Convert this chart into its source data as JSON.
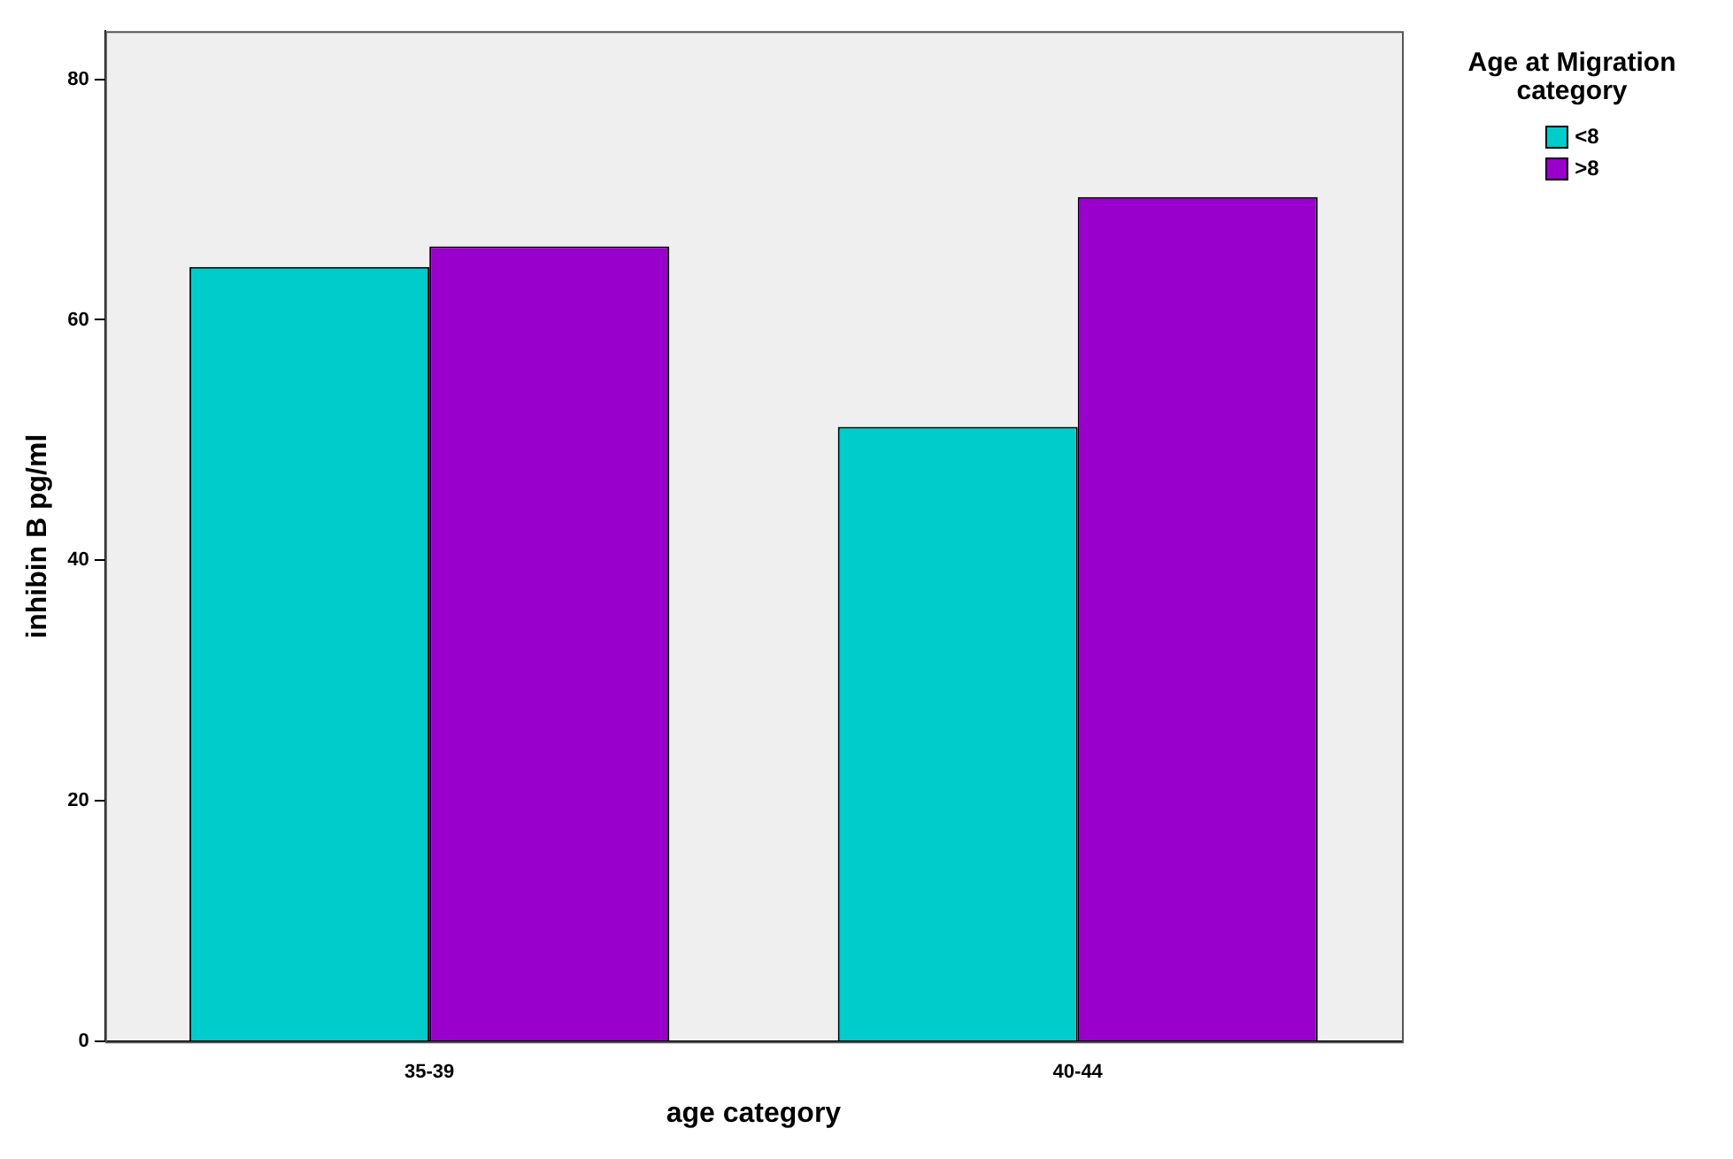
{
  "chart_data": {
    "type": "bar",
    "xlabel": "age category",
    "ylabel": "inhibin B pg/ml",
    "legend_title": "Age at Migration category",
    "categories": [
      "35-39",
      "40-44"
    ],
    "series": [
      {
        "name": "<8",
        "color": "#00cccc",
        "values": [
          64.4,
          51.1
        ]
      },
      {
        "name": ">8",
        "color": "#9900cc",
        "values": [
          66.1,
          70.2
        ]
      }
    ],
    "ylim": [
      0,
      84
    ],
    "yticks": [
      0,
      20,
      40,
      60,
      80
    ],
    "grid": false,
    "legend": "top right"
  }
}
